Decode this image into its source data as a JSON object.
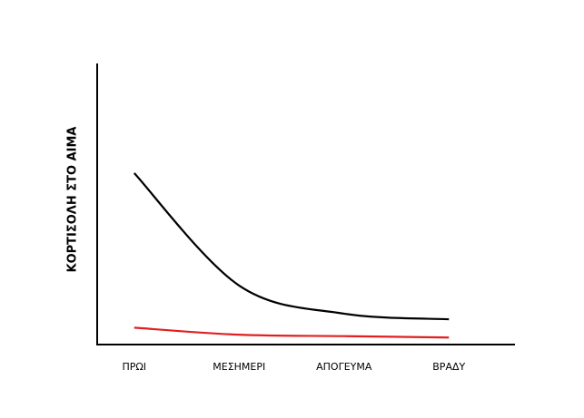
{
  "chart_data": {
    "type": "line",
    "y_label": "ΚΟΡΤΙΣΟΛΗ ΣΤΟ ΑΙΜΑ",
    "categories": [
      "ΠΡΩΙ",
      "ΜΕΣΗΜΕΡΙ",
      "ΑΠΟΓΕΥΜΑ",
      "ΒΡΑΔΥ"
    ],
    "series": [
      {
        "color": "#000000",
        "values": [
          61,
          21,
          11,
          9
        ]
      },
      {
        "color": "#e02020",
        "values": [
          6,
          3.5,
          3,
          2.5
        ]
      }
    ],
    "ylim": [
      0,
      100
    ]
  }
}
